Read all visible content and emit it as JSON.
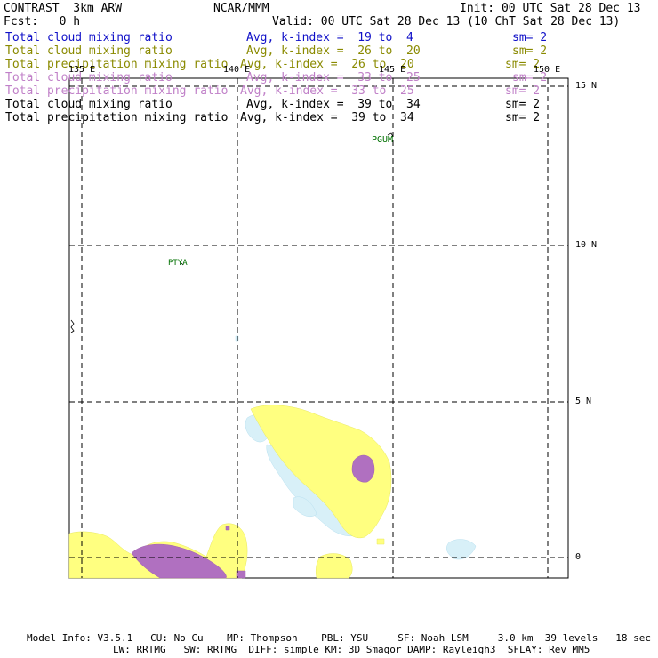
{
  "header": {
    "title_left": "CONTRAST  3km ARW",
    "title_center": "NCAR/MMM",
    "init": "Init: 00 UTC Sat 28 Dec 13",
    "fcst": "Fcst:   0 h",
    "valid": "Valid: 00 UTC Sat 28 Dec 13 (10 ChT Sat 28 Dec 13)"
  },
  "legend": [
    {
      "field": "Total cloud mixing ratio",
      "range": "Avg, k-index =  19 to  4",
      "smooth": "sm= 2",
      "color": "#1010c8"
    },
    {
      "field": "Total cloud mixing ratio",
      "range": "Avg, k-index =  26 to  20",
      "smooth": "sm= 2",
      "color": "#8a8a00"
    },
    {
      "field": "Total precipitation mixing ratio",
      "range": "Avg, k-index =  26 to  20",
      "smooth": "sm= 2",
      "color": "#8a8a00"
    },
    {
      "field": "Total cloud mixing ratio",
      "range": "Avg, k-index =  33 to  25",
      "smooth": "sm= 2",
      "color": "#c080c8"
    },
    {
      "field": "Total precipitation mixing ratio",
      "range": "Avg, k-index =  33 to  25",
      "smooth": "sm= 2",
      "color": "#c080c8"
    },
    {
      "field": "Total cloud mixing ratio",
      "range": "Avg, k-index =  39 to  34",
      "smooth": "sm= 2",
      "color": "#000000"
    },
    {
      "field": "Total precipitation mixing ratio",
      "range": "Avg, k-index =  39 to  34",
      "smooth": "sm= 2",
      "color": "#000000"
    }
  ],
  "map": {
    "lon_labels": [
      "135 E",
      "140 E",
      "145 E",
      "150 E"
    ],
    "lat_labels": [
      "15 N",
      "10 N",
      "5 N",
      "0"
    ],
    "stations": [
      "PGUM",
      "PTYA"
    ],
    "colors": {
      "cloud_light": "#d8f0f8",
      "yellow": "#ffff80",
      "purple": "#b070c0",
      "station": "#007000",
      "grid": "#000000"
    }
  },
  "footer": {
    "line1": "Model Info: V3.5.1   CU: No Cu    MP: Thompson    PBL: YSU     SF: Noah LSM     3.0 km  39 levels   18 sec",
    "line2": "LW: RRTMG   SW: RRTMG  DIFF: simple KM: 3D Smagor DAMP: Rayleigh3  SFLAY: Rev MM5"
  }
}
